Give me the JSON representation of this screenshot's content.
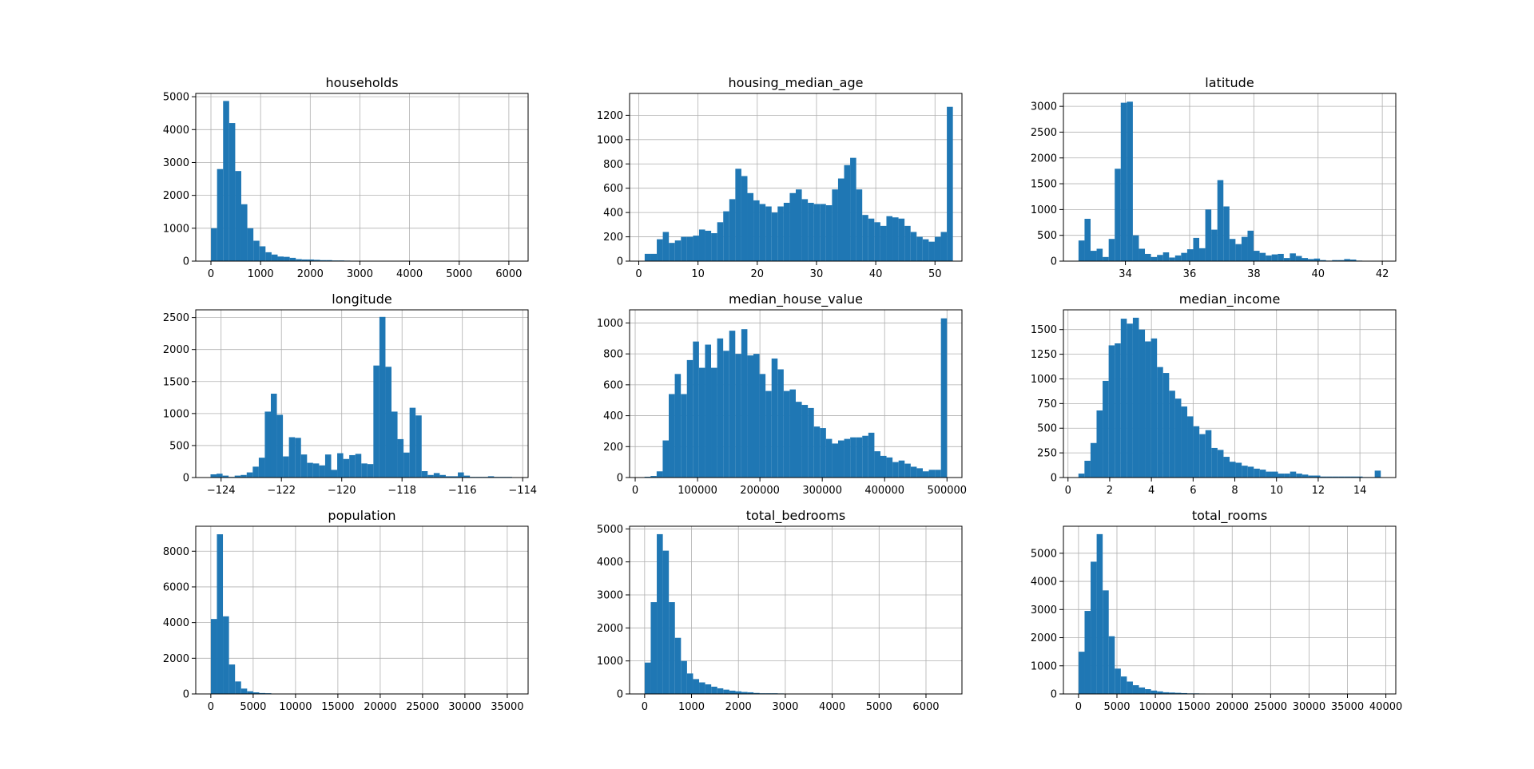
{
  "figure": {
    "bar_color": "#1f77b4",
    "grid_color": "#b0b0b0",
    "axis_color": "#000000"
  },
  "chart_data": [
    {
      "type": "bar",
      "title": "households",
      "xlabel": "",
      "ylabel": "",
      "xlim": [
        -306,
        6388
      ],
      "ylim": [
        0,
        5100
      ],
      "xticks": [
        0,
        1000,
        2000,
        3000,
        4000,
        5000,
        6000
      ],
      "xtick_labels": [
        "0",
        "1000",
        "2000",
        "3000",
        "4000",
        "5000",
        "6000"
      ],
      "yticks": [
        0,
        1000,
        2000,
        3000,
        4000,
        5000
      ],
      "ytick_labels": [
        "0",
        "1000",
        "2000",
        "3000",
        "4000",
        "5000"
      ],
      "bin_start": 1,
      "bin_width": 122,
      "values": [
        1000,
        2800,
        4870,
        4200,
        2740,
        1730,
        1000,
        620,
        450,
        270,
        200,
        140,
        130,
        100,
        60,
        50,
        50,
        40,
        30,
        30,
        20,
        20,
        15,
        10,
        10,
        10,
        10,
        10,
        10,
        8,
        6,
        6,
        5,
        5,
        5,
        5,
        4,
        4,
        4,
        3,
        3,
        3,
        3,
        2,
        2,
        2,
        2,
        2,
        2,
        2
      ]
    },
    {
      "type": "bar",
      "title": "housing_median_age",
      "xlabel": "",
      "ylabel": "",
      "xlim": [
        -1.55,
        54.55
      ],
      "ylim": [
        0,
        1380
      ],
      "xticks": [
        0,
        10,
        20,
        30,
        40,
        50
      ],
      "xtick_labels": [
        "0",
        "10",
        "20",
        "30",
        "40",
        "50"
      ],
      "yticks": [
        0,
        200,
        400,
        600,
        800,
        1000,
        1200
      ],
      "ytick_labels": [
        "0",
        "200",
        "400",
        "600",
        "800",
        "1000",
        "1200"
      ],
      "bin_start": 1,
      "bin_width": 1.02,
      "values": [
        60,
        60,
        180,
        240,
        150,
        170,
        200,
        200,
        210,
        260,
        250,
        230,
        320,
        410,
        510,
        760,
        700,
        560,
        500,
        470,
        450,
        400,
        450,
        480,
        560,
        590,
        510,
        480,
        470,
        470,
        460,
        590,
        680,
        790,
        850,
        590,
        380,
        350,
        320,
        290,
        370,
        360,
        350,
        290,
        240,
        200,
        180,
        160,
        200,
        240,
        1270
      ]
    },
    {
      "type": "bar",
      "title": "latitude",
      "xlabel": "",
      "ylabel": "",
      "xlim": [
        32.07,
        42.42
      ],
      "ylim": [
        0,
        3250
      ],
      "xticks": [
        34,
        36,
        38,
        40,
        42
      ],
      "xtick_labels": [
        "34",
        "36",
        "38",
        "40",
        "42"
      ],
      "yticks": [
        0,
        500,
        1000,
        1500,
        2000,
        2500,
        3000
      ],
      "ytick_labels": [
        "0",
        "500",
        "1000",
        "1500",
        "2000",
        "2500",
        "3000"
      ],
      "bin_start": 32.54,
      "bin_width": 0.188,
      "values": [
        400,
        820,
        200,
        240,
        80,
        430,
        1790,
        3070,
        3090,
        500,
        240,
        140,
        80,
        120,
        170,
        70,
        110,
        160,
        230,
        450,
        250,
        1000,
        610,
        1570,
        1060,
        430,
        330,
        470,
        590,
        200,
        160,
        110,
        130,
        140,
        60,
        150,
        100,
        60,
        40,
        50,
        20,
        10,
        20,
        20,
        40,
        30,
        10
      ]
    },
    {
      "type": "bar",
      "title": "longitude",
      "xlabel": "",
      "ylabel": "",
      "xlim": [
        -124.84,
        -113.82
      ],
      "ylim": [
        0,
        2620
      ],
      "xticks": [
        -124,
        -122,
        -120,
        -118,
        -116,
        -114
      ],
      "xtick_labels": [
        "−124",
        "−122",
        "−120",
        "−118",
        "−116",
        "−114"
      ],
      "yticks": [
        0,
        500,
        1000,
        1500,
        2000,
        2500
      ],
      "ytick_labels": [
        "0",
        "500",
        "1000",
        "1500",
        "2000",
        "2500"
      ],
      "bin_start": -124.35,
      "bin_width": 0.2,
      "values": [
        50,
        60,
        30,
        10,
        30,
        40,
        80,
        170,
        310,
        1030,
        1310,
        980,
        330,
        630,
        620,
        360,
        230,
        220,
        190,
        360,
        120,
        380,
        290,
        350,
        370,
        220,
        210,
        1750,
        2510,
        1730,
        1030,
        600,
        390,
        1090,
        970,
        100,
        40,
        70,
        40,
        20,
        20,
        80,
        30,
        10,
        10,
        10,
        20,
        10,
        10,
        10
      ]
    },
    {
      "type": "bar",
      "title": "median_house_value",
      "xlabel": "",
      "ylabel": "",
      "xlim": [
        -9000,
        524000
      ],
      "ylim": [
        0,
        1085
      ],
      "xticks": [
        0,
        100000,
        200000,
        300000,
        400000,
        500000
      ],
      "xtick_labels": [
        "0",
        "100000",
        "200000",
        "300000",
        "400000",
        "500000"
      ],
      "yticks": [
        0,
        200,
        400,
        600,
        800,
        1000
      ],
      "ytick_labels": [
        "0",
        "200",
        "400",
        "600",
        "800",
        "1000"
      ],
      "bin_start": 14999,
      "bin_width": 9700,
      "values": [
        5,
        10,
        40,
        240,
        540,
        670,
        540,
        760,
        880,
        710,
        860,
        710,
        900,
        820,
        950,
        800,
        960,
        790,
        800,
        670,
        560,
        770,
        700,
        560,
        570,
        490,
        470,
        450,
        330,
        320,
        250,
        220,
        240,
        250,
        260,
        260,
        270,
        290,
        170,
        140,
        130,
        100,
        110,
        90,
        70,
        60,
        40,
        50,
        50,
        1030
      ]
    },
    {
      "type": "bar",
      "title": "median_income",
      "xlabel": "",
      "ylabel": "",
      "xlim": [
        -0.22,
        15.72
      ],
      "ylim": [
        0,
        1700
      ],
      "xticks": [
        0,
        2,
        4,
        6,
        8,
        10,
        12,
        14
      ],
      "xtick_labels": [
        "0",
        "2",
        "4",
        "6",
        "8",
        "10",
        "12",
        "14"
      ],
      "yticks": [
        0,
        250,
        500,
        750,
        1000,
        1250,
        1500
      ],
      "ytick_labels": [
        "0",
        "250",
        "500",
        "750",
        "1000",
        "1250",
        "1500"
      ],
      "bin_start": 0.5,
      "bin_width": 0.29,
      "values": [
        40,
        170,
        350,
        680,
        980,
        1340,
        1360,
        1610,
        1560,
        1620,
        1500,
        1380,
        1410,
        1120,
        1060,
        880,
        800,
        720,
        620,
        520,
        440,
        480,
        300,
        280,
        210,
        160,
        150,
        120,
        110,
        90,
        80,
        60,
        60,
        40,
        40,
        60,
        40,
        30,
        20,
        20,
        10,
        10,
        10,
        10,
        10,
        10,
        10,
        5,
        5,
        70
      ]
    },
    {
      "type": "bar",
      "title": "population",
      "xlabel": "",
      "ylabel": "",
      "xlim": [
        -1780,
        37462
      ],
      "ylim": [
        0,
        9400
      ],
      "xticks": [
        0,
        5000,
        10000,
        15000,
        20000,
        25000,
        30000,
        35000
      ],
      "xtick_labels": [
        "0",
        "5000",
        "10000",
        "15000",
        "20000",
        "25000",
        "30000",
        "35000"
      ],
      "yticks": [
        0,
        2000,
        4000,
        6000,
        8000
      ],
      "ytick_labels": [
        "0",
        "2000",
        "4000",
        "6000",
        "8000"
      ],
      "bin_start": 3,
      "bin_width": 714,
      "values": [
        4200,
        8950,
        4350,
        1650,
        700,
        300,
        150,
        90,
        50,
        40,
        20,
        10,
        10,
        8,
        6,
        5,
        5,
        4,
        3,
        3,
        2,
        2,
        2,
        2,
        2,
        2,
        2,
        2,
        2,
        2,
        2,
        2,
        2,
        2,
        2,
        2,
        2,
        2,
        2,
        2,
        2,
        2,
        2,
        2,
        2,
        2,
        2,
        2,
        2,
        2
      ]
    },
    {
      "type": "bar",
      "title": "total_bedrooms",
      "xlabel": "",
      "ylabel": "",
      "xlim": [
        -321,
        6767
      ],
      "ylim": [
        0,
        5080
      ],
      "xticks": [
        0,
        1000,
        2000,
        3000,
        4000,
        5000,
        6000
      ],
      "xtick_labels": [
        "0",
        "1000",
        "2000",
        "3000",
        "4000",
        "5000",
        "6000"
      ],
      "yticks": [
        0,
        1000,
        2000,
        3000,
        4000,
        5000
      ],
      "ytick_labels": [
        "0",
        "1000",
        "2000",
        "3000",
        "4000",
        "5000"
      ],
      "bin_start": 1,
      "bin_width": 129,
      "values": [
        950,
        2780,
        4840,
        4340,
        2780,
        1700,
        1000,
        620,
        450,
        350,
        290,
        220,
        170,
        130,
        100,
        80,
        60,
        50,
        30,
        20,
        20,
        20,
        15,
        12,
        10,
        8,
        6,
        5,
        5,
        4,
        4,
        4,
        3,
        3,
        3,
        3,
        3,
        2,
        2,
        2,
        2,
        2,
        2,
        2,
        2,
        2,
        2,
        2,
        2,
        2
      ]
    },
    {
      "type": "bar",
      "title": "total_rooms",
      "xlabel": "",
      "ylabel": "",
      "xlim": [
        -1966,
        41290
      ],
      "ylim": [
        0,
        5960
      ],
      "xticks": [
        0,
        5000,
        10000,
        15000,
        20000,
        25000,
        30000,
        35000,
        40000
      ],
      "xtick_labels": [
        "0",
        "5000",
        "10000",
        "15000",
        "20000",
        "25000",
        "30000",
        "35000",
        "40000"
      ],
      "yticks": [
        0,
        1000,
        2000,
        3000,
        4000,
        5000
      ],
      "ytick_labels": [
        "0",
        "1000",
        "2000",
        "3000",
        "4000",
        "5000"
      ],
      "bin_start": 2,
      "bin_width": 786,
      "values": [
        1500,
        2950,
        4700,
        5680,
        3680,
        2050,
        900,
        620,
        440,
        310,
        230,
        170,
        120,
        90,
        60,
        50,
        40,
        30,
        20,
        20,
        15,
        10,
        8,
        6,
        5,
        4,
        3,
        3,
        3,
        2,
        2,
        2,
        2,
        2,
        2,
        2,
        2,
        2,
        2,
        2,
        2,
        2,
        2,
        2,
        2,
        2,
        2,
        2,
        2,
        2
      ]
    }
  ]
}
